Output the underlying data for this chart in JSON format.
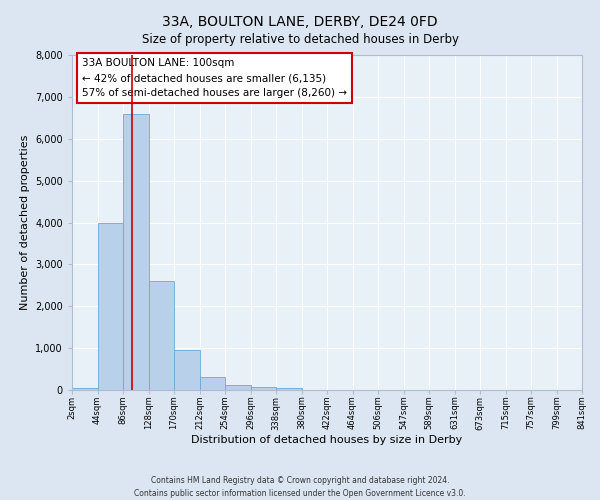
{
  "title": "33A, BOULTON LANE, DERBY, DE24 0FD",
  "subtitle": "Size of property relative to detached houses in Derby",
  "xlabel": "Distribution of detached houses by size in Derby",
  "ylabel": "Number of detached properties",
  "bin_labels": [
    "2sqm",
    "44sqm",
    "86sqm",
    "128sqm",
    "170sqm",
    "212sqm",
    "254sqm",
    "296sqm",
    "338sqm",
    "380sqm",
    "422sqm",
    "464sqm",
    "506sqm",
    "547sqm",
    "589sqm",
    "631sqm",
    "673sqm",
    "715sqm",
    "757sqm",
    "799sqm",
    "841sqm"
  ],
  "bar_heights": [
    50,
    4000,
    6600,
    2600,
    950,
    310,
    130,
    60,
    50,
    0,
    0,
    0,
    0,
    0,
    0,
    0,
    0,
    0,
    0,
    0
  ],
  "bar_color": "#b8d0ea",
  "bar_edge_color": "#6aaad4",
  "ylim": [
    0,
    8000
  ],
  "yticks": [
    0,
    1000,
    2000,
    3000,
    4000,
    5000,
    6000,
    7000,
    8000
  ],
  "property_line_x": 100,
  "property_line_color": "#cc0000",
  "annotation_title": "33A BOULTON LANE: 100sqm",
  "annotation_line1": "← 42% of detached houses are smaller (6,135)",
  "annotation_line2": "57% of semi-detached houses are larger (8,260) →",
  "annotation_box_color": "#cc0000",
  "bg_color": "#dce6f2",
  "plot_bg_color": "#e8f0f8",
  "footer_line1": "Contains HM Land Registry data © Crown copyright and database right 2024.",
  "footer_line2": "Contains public sector information licensed under the Open Government Licence v3.0."
}
